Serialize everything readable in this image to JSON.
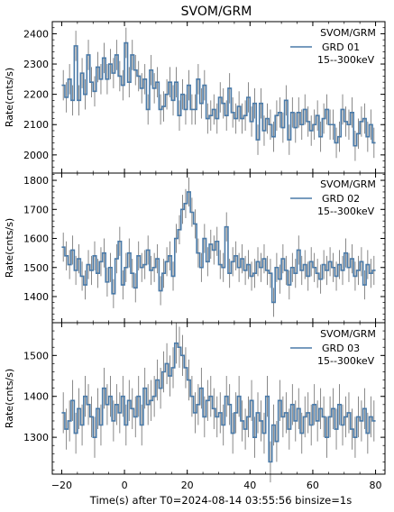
{
  "figure": {
    "title": "SVOM/GRM",
    "xlabel": "Time(s) after T0=2024-08-14 03:55:56 binsize=1s",
    "ylabel": "Rate(cnts/s)",
    "line_color": "#4a7aa8",
    "error_color": "#6b6b6b"
  },
  "chart_data": [
    {
      "type": "line",
      "title": "SVOM/GRM",
      "legend": {
        "instrument": "SVOM/GRM",
        "detector": "GRD 01",
        "band": "15--300keV",
        "placement": "top-right"
      },
      "xlabel": "Time(s) after T0=2024-08-14 03:55:56 binsize=1s",
      "ylabel": "Rate(cnts/s)",
      "xlim": [
        -23,
        83
      ],
      "ylim": [
        1940,
        2440
      ],
      "yticks": [
        2000,
        2100,
        2200,
        2300,
        2400
      ],
      "grid": false,
      "series": [
        {
          "x": [
            -20,
            -19,
            -18,
            -17,
            -16,
            -15,
            -14,
            -13,
            -12,
            -11,
            -10,
            -9,
            -8,
            -7,
            -6,
            -5,
            -4,
            -3,
            -2,
            -1,
            0,
            1,
            2,
            3,
            4,
            5,
            6,
            7,
            8,
            9,
            10,
            11,
            12,
            13,
            14,
            15,
            16,
            17,
            18,
            19,
            20,
            21,
            22,
            23,
            24,
            25,
            26,
            27,
            28,
            29,
            30,
            31,
            32,
            33,
            34,
            35,
            36,
            37,
            38,
            39,
            40,
            41,
            42,
            43,
            44,
            45,
            46,
            47,
            48,
            49,
            50,
            51,
            52,
            53,
            54,
            55,
            56,
            57,
            58,
            59,
            60,
            61,
            62,
            63,
            64,
            65,
            66,
            67,
            68,
            69,
            70,
            71,
            72,
            73,
            74,
            75,
            76,
            77,
            78,
            79
          ],
          "y": [
            2230,
            2190,
            2250,
            2180,
            2360,
            2180,
            2270,
            2200,
            2330,
            2240,
            2210,
            2290,
            2250,
            2320,
            2250,
            2300,
            2270,
            2330,
            2260,
            2230,
            2370,
            2240,
            2330,
            2280,
            2260,
            2220,
            2250,
            2150,
            2280,
            2220,
            2240,
            2150,
            2160,
            2200,
            2240,
            2180,
            2240,
            2130,
            2200,
            2150,
            2230,
            2150,
            2150,
            2250,
            2170,
            2230,
            2120,
            2130,
            2150,
            2120,
            2190,
            2170,
            2130,
            2220,
            2140,
            2120,
            2160,
            2120,
            2130,
            2190,
            2110,
            2170,
            2050,
            2170,
            2080,
            2120,
            2100,
            2060,
            2130,
            2140,
            2090,
            2180,
            2050,
            2140,
            2090,
            2140,
            2100,
            2150,
            2110,
            2080,
            2100,
            2130,
            2060,
            2120,
            2150,
            2100,
            2100,
            2040,
            2060,
            2150,
            2110,
            2100,
            2140,
            2030,
            2070,
            2110,
            2120,
            2060,
            2100,
            2040
          ],
          "error": 50
        }
      ]
    },
    {
      "type": "line",
      "legend": {
        "instrument": "SVOM/GRM",
        "detector": "GRD 02",
        "band": "15--300keV",
        "placement": "top-right"
      },
      "ylabel": "Rate(cnts/s)",
      "xlim": [
        -23,
        83
      ],
      "ylim": [
        1310,
        1825
      ],
      "yticks": [
        1400,
        1500,
        1600,
        1700,
        1800
      ],
      "grid": false,
      "series": [
        {
          "x": [
            -20,
            -19,
            -18,
            -17,
            -16,
            -15,
            -14,
            -13,
            -12,
            -11,
            -10,
            -9,
            -8,
            -7,
            -6,
            -5,
            -4,
            -3,
            -2,
            -1,
            0,
            1,
            2,
            3,
            4,
            5,
            6,
            7,
            8,
            9,
            10,
            11,
            12,
            13,
            14,
            15,
            16,
            17,
            18,
            19,
            20,
            21,
            22,
            23,
            24,
            25,
            26,
            27,
            28,
            29,
            30,
            31,
            32,
            33,
            34,
            35,
            36,
            37,
            38,
            39,
            40,
            41,
            42,
            43,
            44,
            45,
            46,
            47,
            48,
            49,
            50,
            51,
            52,
            53,
            54,
            55,
            56,
            57,
            58,
            59,
            60,
            61,
            62,
            63,
            64,
            65,
            66,
            67,
            68,
            69,
            70,
            71,
            72,
            73,
            74,
            75,
            76,
            77,
            78,
            79
          ],
          "y": [
            1570,
            1540,
            1510,
            1560,
            1490,
            1530,
            1470,
            1440,
            1510,
            1490,
            1540,
            1480,
            1520,
            1550,
            1450,
            1500,
            1410,
            1530,
            1590,
            1440,
            1500,
            1550,
            1480,
            1430,
            1540,
            1500,
            1510,
            1560,
            1490,
            1500,
            1530,
            1420,
            1480,
            1520,
            1540,
            1470,
            1600,
            1630,
            1700,
            1720,
            1760,
            1690,
            1650,
            1550,
            1500,
            1600,
            1520,
            1580,
            1560,
            1590,
            1510,
            1500,
            1640,
            1480,
            1520,
            1540,
            1500,
            1530,
            1490,
            1510,
            1470,
            1480,
            1520,
            1500,
            1530,
            1490,
            1480,
            1380,
            1500,
            1460,
            1530,
            1490,
            1440,
            1500,
            1480,
            1560,
            1490,
            1510,
            1470,
            1520,
            1500,
            1480,
            1460,
            1510,
            1490,
            1520,
            1500,
            1470,
            1510,
            1490,
            1550,
            1500,
            1530,
            1470,
            1490,
            1520,
            1440,
            1510,
            1480,
            1490
          ],
          "error": 50
        }
      ]
    },
    {
      "type": "line",
      "legend": {
        "instrument": "SVOM/GRM",
        "detector": "GRD 03",
        "band": "15--300keV",
        "placement": "top-right"
      },
      "xlabel": "Time(s) after T0=2024-08-14 03:55:56 binsize=1s",
      "ylabel": "Rate(cnts/s)",
      "xlim": [
        -23,
        83
      ],
      "ylim": [
        1210,
        1580
      ],
      "xticks": [
        -20,
        0,
        20,
        40,
        60,
        80
      ],
      "yticks": [
        1300,
        1400,
        1500
      ],
      "grid": false,
      "series": [
        {
          "x": [
            -20,
            -19,
            -18,
            -17,
            -16,
            -15,
            -14,
            -13,
            -12,
            -11,
            -10,
            -9,
            -8,
            -7,
            -6,
            -5,
            -4,
            -3,
            -2,
            -1,
            0,
            1,
            2,
            3,
            4,
            5,
            6,
            7,
            8,
            9,
            10,
            11,
            12,
            13,
            14,
            15,
            16,
            17,
            18,
            19,
            20,
            21,
            22,
            23,
            24,
            25,
            26,
            27,
            28,
            29,
            30,
            31,
            32,
            33,
            34,
            35,
            36,
            37,
            38,
            39,
            40,
            41,
            42,
            43,
            44,
            45,
            46,
            47,
            48,
            49,
            50,
            51,
            52,
            53,
            54,
            55,
            56,
            57,
            58,
            59,
            60,
            61,
            62,
            63,
            64,
            65,
            66,
            67,
            68,
            69,
            70,
            71,
            72,
            73,
            74,
            75,
            76,
            77,
            78,
            79
          ],
          "y": [
            1360,
            1320,
            1340,
            1390,
            1310,
            1370,
            1330,
            1400,
            1380,
            1350,
            1300,
            1370,
            1330,
            1420,
            1380,
            1400,
            1340,
            1380,
            1360,
            1400,
            1330,
            1390,
            1370,
            1350,
            1400,
            1330,
            1420,
            1380,
            1390,
            1400,
            1440,
            1420,
            1460,
            1480,
            1450,
            1470,
            1530,
            1520,
            1500,
            1470,
            1440,
            1400,
            1360,
            1380,
            1420,
            1350,
            1390,
            1400,
            1370,
            1350,
            1360,
            1330,
            1400,
            1380,
            1310,
            1360,
            1400,
            1340,
            1320,
            1350,
            1390,
            1300,
            1360,
            1340,
            1310,
            1400,
            1240,
            1330,
            1290,
            1390,
            1350,
            1360,
            1320,
            1380,
            1340,
            1370,
            1310,
            1350,
            1360,
            1330,
            1380,
            1340,
            1370,
            1350,
            1300,
            1350,
            1370,
            1320,
            1380,
            1330,
            1350,
            1360,
            1320,
            1300,
            1350,
            1340,
            1370,
            1310,
            1350,
            1340
          ],
          "error": 50
        }
      ]
    }
  ]
}
